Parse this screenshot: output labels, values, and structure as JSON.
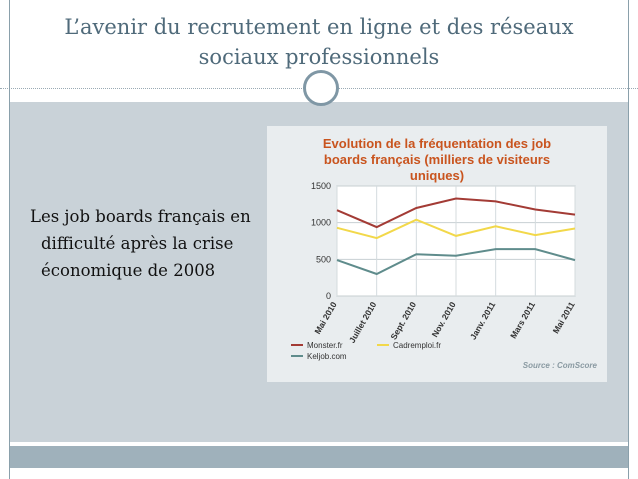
{
  "slide": {
    "title_line1": "L’avenir du recrutement en ligne et des réseaux",
    "title_line2": "sociaux professionnels",
    "bullet": "Les job boards français en difficulté après la crise économique de 2008"
  },
  "chart_data": {
    "type": "line",
    "title_lines": [
      "Evolution de la fréquentation des job",
      "boards français (milliers de visiteurs",
      "uniques)"
    ],
    "x": [
      "Mai 2010",
      "Juillet 2010",
      "Sept. 2010",
      "Nov. 2010",
      "Janv. 2011",
      "Mars 2011",
      "Mai 2011"
    ],
    "ylim": [
      0,
      1500
    ],
    "yticks": [
      "0",
      "500",
      "1000",
      "1500"
    ],
    "grid": true,
    "legend_position": "bottom-left",
    "series": [
      {
        "name": "Monster.fr",
        "color": "#a33b35",
        "values": [
          1170,
          940,
          1200,
          1330,
          1290,
          1180,
          1110
        ]
      },
      {
        "name": "Cadremploi.fr",
        "color": "#f2d84a",
        "values": [
          930,
          790,
          1040,
          820,
          950,
          830,
          920
        ]
      },
      {
        "name": "Keljob.com",
        "color": "#5f8c8c",
        "values": [
          490,
          300,
          570,
          550,
          640,
          640,
          490
        ]
      }
    ],
    "source": "Source : ComScore"
  }
}
